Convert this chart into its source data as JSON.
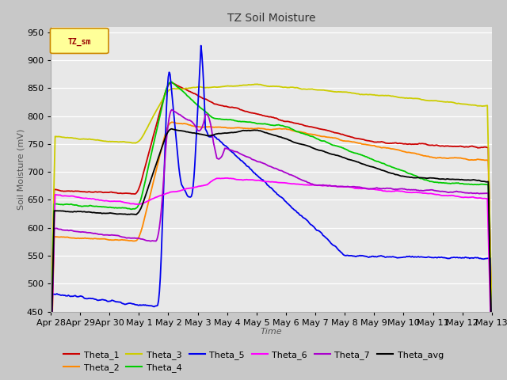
{
  "title": "TZ Soil Moisture",
  "xlabel": "Time",
  "ylabel": "Soil Moisture (mV)",
  "ylim": [
    450,
    960
  ],
  "yticks": [
    450,
    500,
    550,
    600,
    650,
    700,
    750,
    800,
    850,
    900,
    950
  ],
  "fig_bg": "#c8c8c8",
  "plot_bg": "#e8e8e8",
  "legend_label": "TZ_sm",
  "series_colors": {
    "Theta_1": "#cc0000",
    "Theta_2": "#ff8800",
    "Theta_3": "#cccc00",
    "Theta_4": "#00cc00",
    "Theta_5": "#0000ee",
    "Theta_6": "#ff00ff",
    "Theta_7": "#aa00cc",
    "Theta_avg": "#000000"
  },
  "x_tick_labels": [
    "Apr 28",
    "Apr 29",
    "Apr 30",
    "May 1",
    "May 2",
    "May 3",
    "May 4",
    "May 5",
    "May 6",
    "May 7",
    "May 8",
    "May 9",
    "May 10",
    "May 11",
    "May 12",
    "May 13"
  ],
  "xlim": [
    0,
    15
  ]
}
